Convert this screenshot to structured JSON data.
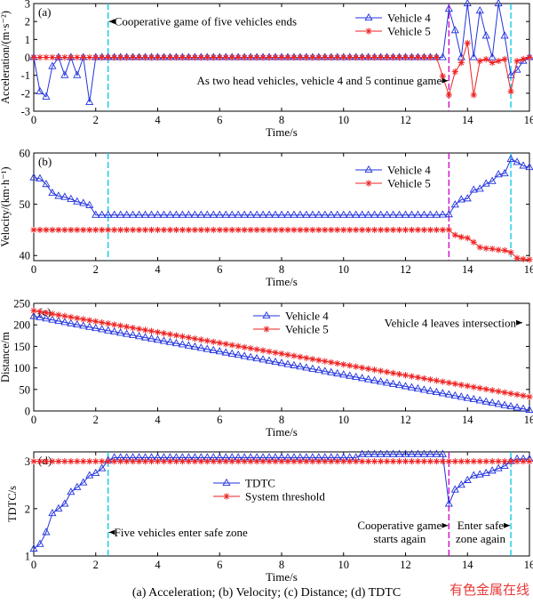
{
  "caption": "(a) Acceleration; (b) Velocity; (c) Distance; (d) TDTC",
  "watermark": "有色金属在线",
  "colors": {
    "blue": "#2233dd",
    "red": "#ee2222",
    "cyan": "#00c8e6",
    "magenta": "#cc00cc"
  },
  "chart_data": [
    {
      "type": "line",
      "panel": "(a)",
      "xlabel": "Time/s",
      "ylabel": "Acceleration/(m·s⁻²)",
      "xlim": [
        0,
        16
      ],
      "ylim": [
        -3,
        3
      ],
      "xticks": [
        0,
        2,
        4,
        6,
        8,
        10,
        12,
        14,
        16
      ],
      "yticks": [
        -3,
        -2,
        -1,
        0,
        1,
        2,
        3
      ],
      "legend_position": "top-right",
      "vlines": [
        {
          "x": 2.4,
          "color": "cyan"
        },
        {
          "x": 13.4,
          "color": "magenta"
        },
        {
          "x": 15.4,
          "color": "cyan"
        }
      ],
      "annotations": [
        {
          "text": "Cooperative game of five vehicles ends",
          "x": 2.6,
          "y": 2.0,
          "arrow_to_x": 2.4,
          "arrow_to_y": 2.0
        },
        {
          "text": "As two head vehicles, vehicle 4 and 5 continue game",
          "x": 4.2,
          "y": -1.3,
          "arrow_to_x": 13.4,
          "arrow_to_y": -1.3
        }
      ],
      "series": [
        {
          "name": "Vehicle 4",
          "marker": "triangle",
          "color": "blue",
          "x": [
            0,
            0.2,
            0.4,
            0.6,
            0.8,
            1.0,
            1.2,
            1.4,
            1.6,
            1.8,
            2.0,
            2.2,
            2.4,
            2.6,
            3.0,
            4.0,
            5.0,
            6.0,
            7.0,
            8.0,
            9.0,
            10.0,
            11.0,
            12.0,
            13.0,
            13.2,
            13.4,
            13.6,
            13.8,
            14.0,
            14.2,
            14.4,
            14.6,
            14.8,
            15.0,
            15.2,
            15.4,
            15.6,
            15.8,
            16.0
          ],
          "values": [
            0,
            -1.9,
            -2.2,
            -0.5,
            0,
            -1.0,
            0,
            -1.0,
            0,
            -2.5,
            0,
            0,
            0,
            0,
            0,
            0,
            0,
            0,
            0,
            0,
            0,
            0,
            0,
            0,
            0,
            0,
            2.7,
            1.5,
            0,
            3.0,
            0,
            2.6,
            1.2,
            0,
            3.0,
            1.2,
            -1.0,
            -0.7,
            -0.2,
            0
          ]
        },
        {
          "name": "Vehicle 5",
          "marker": "asterisk",
          "color": "red",
          "x": [
            0,
            1,
            2,
            3,
            4,
            5,
            6,
            7,
            8,
            9,
            10,
            11,
            12,
            13,
            13.4,
            13.6,
            13.8,
            14.0,
            14.2,
            14.4,
            14.6,
            14.8,
            15.0,
            15.2,
            15.4,
            15.6,
            15.8,
            16.0
          ],
          "values": [
            0,
            0,
            0,
            0,
            0,
            0,
            0,
            0,
            0,
            0,
            0,
            0,
            0,
            0,
            -2.1,
            -0.8,
            -0.3,
            0.8,
            -2.1,
            -0.2,
            -0.1,
            -0.3,
            -0.2,
            -0.1,
            -1.9,
            -0.2,
            -0.1,
            0
          ]
        }
      ]
    },
    {
      "type": "line",
      "panel": "(b)",
      "xlabel": "Time/s",
      "ylabel": "Velocity/(km·h⁻¹)",
      "xlim": [
        0,
        16
      ],
      "ylim": [
        39,
        60
      ],
      "xticks": [
        0,
        2,
        4,
        6,
        8,
        10,
        12,
        14,
        16
      ],
      "yticks": [
        40,
        50,
        60
      ],
      "legend_position": "top-right",
      "vlines": [
        {
          "x": 2.4,
          "color": "cyan"
        },
        {
          "x": 13.4,
          "color": "magenta"
        },
        {
          "x": 15.4,
          "color": "cyan"
        }
      ],
      "series": [
        {
          "name": "Vehicle 4",
          "marker": "triangle",
          "color": "blue",
          "x": [
            0,
            0.2,
            0.4,
            0.6,
            0.8,
            1.0,
            1.2,
            1.4,
            1.6,
            1.8,
            2.0,
            3.0,
            4.0,
            5.0,
            6.0,
            7.0,
            8.0,
            9.0,
            10.0,
            11.0,
            12.0,
            13.0,
            13.4,
            13.6,
            13.8,
            14.0,
            14.2,
            14.4,
            14.6,
            14.8,
            15.0,
            15.2,
            15.4,
            15.6,
            15.8,
            16.0
          ],
          "values": [
            55.2,
            55.0,
            53.9,
            52.2,
            51.6,
            51.4,
            51.0,
            50.5,
            50.2,
            49.8,
            47.9,
            47.9,
            47.9,
            47.9,
            47.9,
            47.9,
            47.9,
            47.9,
            47.9,
            47.9,
            47.9,
            47.9,
            48.0,
            49.9,
            50.9,
            51.1,
            52.8,
            53.0,
            54.0,
            54.5,
            55.8,
            56.0,
            58.8,
            58.2,
            57.5,
            57.2
          ]
        },
        {
          "name": "Vehicle 5",
          "marker": "asterisk",
          "color": "red",
          "x": [
            0,
            1,
            2,
            3,
            4,
            5,
            6,
            7,
            8,
            9,
            10,
            11,
            12,
            13,
            13.4,
            13.6,
            13.8,
            14.0,
            14.2,
            14.4,
            14.6,
            14.8,
            15.0,
            15.2,
            15.4,
            15.6,
            15.8,
            16.0
          ],
          "values": [
            45,
            45,
            45,
            45,
            45,
            45,
            45,
            45,
            45,
            45,
            45,
            45,
            45,
            45,
            45,
            44.0,
            43.6,
            43.4,
            42.6,
            41.6,
            41.4,
            41.3,
            41.1,
            41.0,
            40.6,
            39.5,
            39.3,
            39.2
          ]
        }
      ]
    },
    {
      "type": "line",
      "panel": "(c)",
      "xlabel": "Time/s",
      "ylabel": "Distance/m",
      "xlim": [
        0,
        16
      ],
      "ylim": [
        0,
        250
      ],
      "xticks": [
        0,
        2,
        4,
        6,
        8,
        10,
        12,
        14,
        16
      ],
      "yticks": [
        0,
        50,
        100,
        150,
        200,
        250
      ],
      "legend_position": "top-center",
      "annotations": [
        {
          "text": "Vehicle 4 leaves intersection",
          "x": 10.5,
          "y": 205,
          "arrow_to_x": 15.8,
          "arrow_to_y": 205
        }
      ],
      "series": [
        {
          "name": "Vehicle 4",
          "marker": "triangle",
          "color": "blue",
          "x": [
            0,
            2,
            4,
            6,
            8,
            10,
            12,
            13.4,
            16
          ],
          "values": [
            220,
            192,
            165,
            138,
            111,
            84,
            57,
            38,
            2
          ]
        },
        {
          "name": "Vehicle 5",
          "marker": "asterisk",
          "color": "red",
          "x": [
            0,
            2,
            4,
            6,
            8,
            10,
            12,
            14,
            16
          ],
          "values": [
            233,
            208,
            183,
            158,
            133,
            108,
            83,
            58,
            33
          ]
        }
      ]
    },
    {
      "type": "line",
      "panel": "(d)",
      "xlabel": "Time/s",
      "ylabel": "TDTC/s",
      "xlim": [
        0,
        16
      ],
      "ylim": [
        1,
        3.2
      ],
      "xticks": [
        0,
        2,
        4,
        6,
        8,
        10,
        12,
        14,
        16
      ],
      "yticks": [
        1,
        2,
        3
      ],
      "legend_position": "top-left",
      "vlines": [
        {
          "x": 2.4,
          "color": "cyan"
        },
        {
          "x": 13.4,
          "color": "magenta"
        },
        {
          "x": 15.4,
          "color": "cyan"
        }
      ],
      "annotations": [
        {
          "text": "Five vehicles enter safe zone",
          "x": 2.6,
          "y": 1.5,
          "arrow_to_x": 2.4,
          "arrow_to_y": 1.5
        },
        {
          "text": "Cooperative game",
          "text2": "starts again",
          "x": 11.6,
          "y": 1.55,
          "arrow_to_x": 13.4,
          "arrow_to_y": 1.55
        },
        {
          "text": "Enter safe",
          "text2": "zone again",
          "x": 14.2,
          "y": 1.55,
          "arrow_to_x": 15.4,
          "arrow_to_y": 1.55
        }
      ],
      "series": [
        {
          "name": "TDTC",
          "marker": "triangle",
          "color": "blue",
          "x": [
            0,
            0.2,
            0.4,
            0.6,
            0.8,
            1.0,
            1.2,
            1.4,
            1.6,
            1.8,
            2.0,
            2.2,
            2.4,
            2.6,
            3.0,
            4.0,
            5.0,
            6.0,
            7.0,
            8.0,
            9.0,
            10.0,
            10.4,
            10.6,
            11.0,
            12.0,
            13.0,
            13.2,
            13.4,
            13.6,
            13.8,
            14.0,
            14.2,
            14.4,
            14.6,
            14.8,
            15.0,
            15.2,
            15.4,
            15.6,
            15.8,
            16.0
          ],
          "values": [
            1.15,
            1.25,
            1.5,
            1.9,
            2.0,
            2.1,
            2.35,
            2.45,
            2.55,
            2.7,
            2.75,
            2.85,
            3.02,
            3.08,
            3.08,
            3.08,
            3.08,
            3.08,
            3.08,
            3.08,
            3.08,
            3.08,
            3.08,
            3.15,
            3.15,
            3.15,
            3.15,
            3.15,
            2.1,
            2.4,
            2.5,
            2.6,
            2.7,
            2.72,
            2.75,
            2.8,
            2.85,
            2.9,
            3.0,
            3.05,
            3.05,
            3.05
          ]
        },
        {
          "name": "System threshold",
          "marker": "asterisk",
          "color": "red",
          "x": [
            0,
            16
          ],
          "values": [
            3.0,
            3.0
          ]
        }
      ]
    }
  ]
}
